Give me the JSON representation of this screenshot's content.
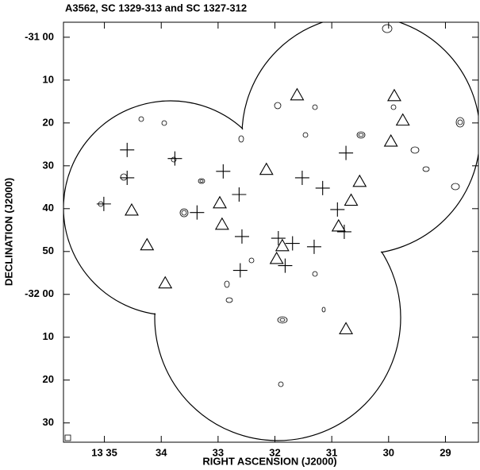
{
  "chart_data": {
    "type": "scatter",
    "title": "A3562, SC 1329-313 and SC 1327-312",
    "x_label": "RIGHT ASCENSION (J2000)",
    "y_label": "DECLINATION (J2000)",
    "xlim": [
      35.72,
      28.42
    ],
    "xticks": [
      {
        "value": 35,
        "label": "13 35"
      },
      34,
      33,
      32,
      31,
      30,
      29
    ],
    "ylim": [
      -3.5,
      94.5
    ],
    "yticks": [
      {
        "value": 0,
        "label": "-31 00"
      },
      10,
      20,
      30,
      40,
      50,
      {
        "value": 60,
        "label": "-32 00"
      },
      {
        "value": 70,
        "label": "10"
      },
      {
        "value": 80,
        "label": "20"
      },
      {
        "value": 90,
        "label": "30"
      }
    ],
    "y_inverted": true,
    "series": [
      {
        "marker": "plus",
        "color": "#000000",
        "x": [
          34.6,
          34.6,
          33.76,
          35.01,
          33.37,
          32.91,
          32.63,
          31.52,
          30.75,
          31.16,
          30.9,
          30.78,
          32.58,
          31.94,
          31.69,
          31.31,
          31.82,
          32.61
        ],
        "y": [
          26.3,
          32.8,
          28.3,
          38.9,
          40.9,
          31.3,
          36.7,
          32.8,
          27.0,
          35.2,
          40.2,
          45.4,
          46.5,
          46.9,
          48.1,
          48.9,
          53.3,
          54.4
        ]
      },
      {
        "marker": "triangle",
        "color": "#000000",
        "x": [
          31.61,
          29.9,
          29.75,
          29.96,
          32.15,
          30.51,
          32.97,
          34.52,
          32.93,
          30.66,
          30.88,
          34.25,
          31.87,
          31.97,
          33.93,
          30.75
        ],
        "y": [
          13.5,
          13.7,
          19.4,
          24.3,
          30.9,
          33.7,
          38.7,
          40.4,
          43.7,
          38.1,
          44.1,
          48.5,
          48.7,
          51.7,
          57.4,
          68.1
        ]
      }
    ]
  }
}
